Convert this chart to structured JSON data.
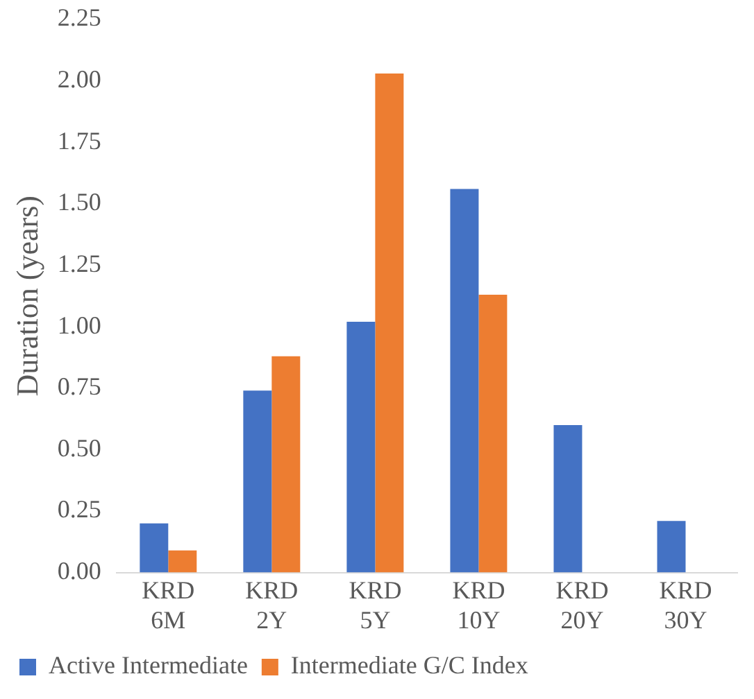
{
  "chart_data": {
    "type": "bar",
    "ylabel": "Duration (years)",
    "categories": [
      "KRD 6M",
      "KRD 2Y",
      "KRD 5Y",
      "KRD 10Y",
      "KRD 20Y",
      "KRD 30Y"
    ],
    "series": [
      {
        "name": "Active Intermediate",
        "color": "#4472c4",
        "values": [
          0.2,
          0.74,
          1.02,
          1.56,
          0.6,
          0.21
        ]
      },
      {
        "name": "Intermediate G/C Index",
        "color": "#ed7d31",
        "values": [
          0.09,
          0.88,
          2.03,
          1.13,
          null,
          null
        ]
      }
    ],
    "ylim": [
      0,
      2.25
    ],
    "yticks": [
      {
        "value": 0,
        "label": "0.00"
      },
      {
        "value": 0.25,
        "label": "0.25"
      },
      {
        "value": 0.5,
        "label": "0.50"
      },
      {
        "value": 0.75,
        "label": "0.75"
      },
      {
        "value": 1,
        "label": "1.00"
      },
      {
        "value": 1.25,
        "label": "1.25"
      },
      {
        "value": 1.5,
        "label": "1.50"
      },
      {
        "value": 1.75,
        "label": "1.75"
      },
      {
        "value": 2,
        "label": "2.00"
      },
      {
        "value": 2.25,
        "label": "2.25"
      }
    ],
    "grid": false,
    "legend": "bottom"
  }
}
